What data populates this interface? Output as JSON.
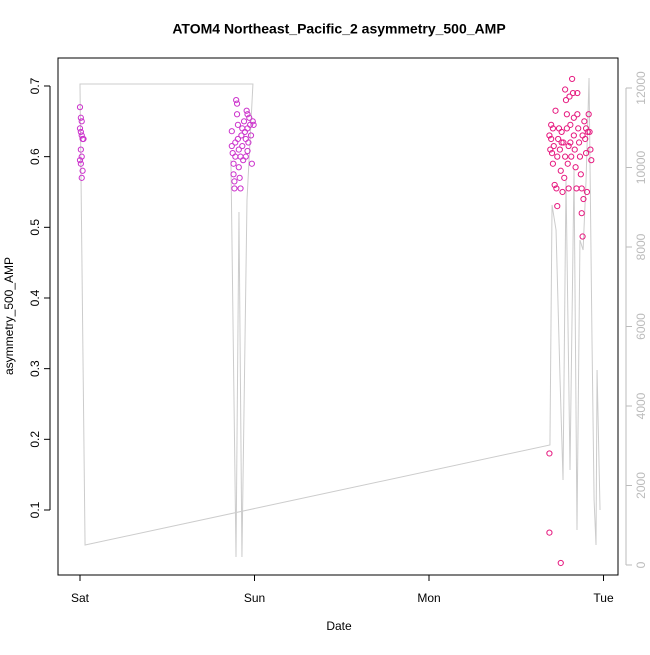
{
  "chart_data": {
    "type": "scatter",
    "title": "ATOM4 Northeast_Pacific_2 asymmetry_500_AMP",
    "x_label": "Date",
    "y_label": "asymmetry_500_AMP",
    "xlim": [
      -0.126,
      3.083
    ],
    "xticks": [
      {
        "value": 0,
        "label": "Sat"
      },
      {
        "value": 1,
        "label": "Sun"
      },
      {
        "value": 2,
        "label": "Mon"
      },
      {
        "value": 3,
        "label": "Tue"
      }
    ],
    "ylim": [
      0.008,
      0.7396
    ],
    "yticks": [
      0.1,
      0.2,
      0.3,
      0.4,
      0.5,
      0.6,
      0.7
    ],
    "y2lim": [
      -252,
      12755
    ],
    "y2ticks": [
      0,
      2000,
      4000,
      6000,
      8000,
      10000,
      12000
    ],
    "series": [
      {
        "type": "line",
        "axis": "y2",
        "color": "#cccccc",
        "x": [
          0.865,
          0.894,
          0.911,
          0.928,
          0.957,
          0.991,
          0,
          0.029,
          2.693,
          2.705,
          2.728,
          2.751,
          2.768,
          2.785,
          2.808,
          2.831,
          2.848,
          2.865,
          2.883,
          2.9,
          2.917,
          2.934,
          2.946,
          2.957,
          2.963,
          2.98
        ],
        "values": [
          10189,
          201,
          8880,
          201,
          9182,
          12100,
          12100,
          503,
          3019,
          9057,
          8428,
          4654,
          2138,
          9686,
          2390,
          9937,
          880,
          8176,
          7925,
          9686,
          12252,
          5660,
          1635,
          503,
          4906,
          1384
        ]
      },
      {
        "type": "scatter",
        "color": "#cc33cc",
        "x": [
          0.0,
          0.005,
          0.01,
          0.0,
          0.005,
          0.01,
          0.015,
          0.02,
          0.005,
          0.01,
          0.0,
          0.005,
          0.015,
          0.01,
          0.87,
          0.87,
          0.875,
          0.88,
          0.88,
          0.885,
          0.885,
          0.89,
          0.89,
          0.895,
          0.9,
          0.9,
          0.905,
          0.905,
          0.91,
          0.91,
          0.915,
          0.92,
          0.92,
          0.925,
          0.93,
          0.93,
          0.935,
          0.94,
          0.945,
          0.95,
          0.955,
          0.96,
          0.96,
          0.965,
          0.97,
          0.975,
          0.98,
          0.985,
          0.99,
          0.995,
          0.96,
          0.95
        ],
        "values": [
          0.67,
          0.655,
          0.65,
          0.64,
          0.635,
          0.63,
          0.625,
          0.625,
          0.61,
          0.6,
          0.595,
          0.59,
          0.58,
          0.57,
          0.636,
          0.615,
          0.605,
          0.59,
          0.575,
          0.565,
          0.555,
          0.62,
          0.6,
          0.68,
          0.675,
          0.66,
          0.645,
          0.625,
          0.61,
          0.585,
          0.57,
          0.6,
          0.555,
          0.63,
          0.64,
          0.615,
          0.595,
          0.65,
          0.635,
          0.625,
          0.665,
          0.66,
          0.64,
          0.62,
          0.655,
          0.645,
          0.63,
          0.59,
          0.65,
          0.645,
          0.608,
          0.6
        ]
      },
      {
        "type": "scatter",
        "color": "#e6197f",
        "x": [
          2.69,
          2.69,
          2.7,
          2.7,
          2.705,
          2.71,
          2.71,
          2.715,
          2.72,
          2.725,
          2.73,
          2.735,
          2.735,
          2.74,
          2.745,
          2.75,
          2.755,
          2.755,
          2.76,
          2.765,
          2.77,
          2.775,
          2.78,
          2.78,
          2.785,
          2.79,
          2.79,
          2.795,
          2.8,
          2.8,
          2.805,
          2.81,
          2.81,
          2.815,
          2.82,
          2.825,
          2.83,
          2.83,
          2.835,
          2.84,
          2.845,
          2.85,
          2.855,
          2.86,
          2.865,
          2.87,
          2.875,
          2.875,
          2.88,
          2.885,
          2.89,
          2.895,
          2.9,
          2.905,
          2.91,
          2.915,
          2.92,
          2.925,
          2.93,
          2.69,
          2.695,
          2.85,
          2.76,
          2.88,
          2.9
        ],
        "values": [
          0.18,
          0.068,
          0.645,
          0.625,
          0.605,
          0.64,
          0.59,
          0.615,
          0.56,
          0.665,
          0.555,
          0.53,
          0.6,
          0.625,
          0.64,
          0.61,
          0.025,
          0.58,
          0.635,
          0.55,
          0.62,
          0.57,
          0.695,
          0.6,
          0.68,
          0.66,
          0.64,
          0.59,
          0.615,
          0.555,
          0.685,
          0.645,
          0.62,
          0.6,
          0.71,
          0.69,
          0.655,
          0.63,
          0.61,
          0.585,
          0.555,
          0.66,
          0.64,
          0.62,
          0.6,
          0.575,
          0.555,
          0.52,
          0.487,
          0.54,
          0.65,
          0.625,
          0.605,
          0.55,
          0.635,
          0.66,
          0.635,
          0.61,
          0.595,
          0.63,
          0.61,
          0.69,
          0.62,
          0.63,
          0.64
        ]
      }
    ]
  }
}
